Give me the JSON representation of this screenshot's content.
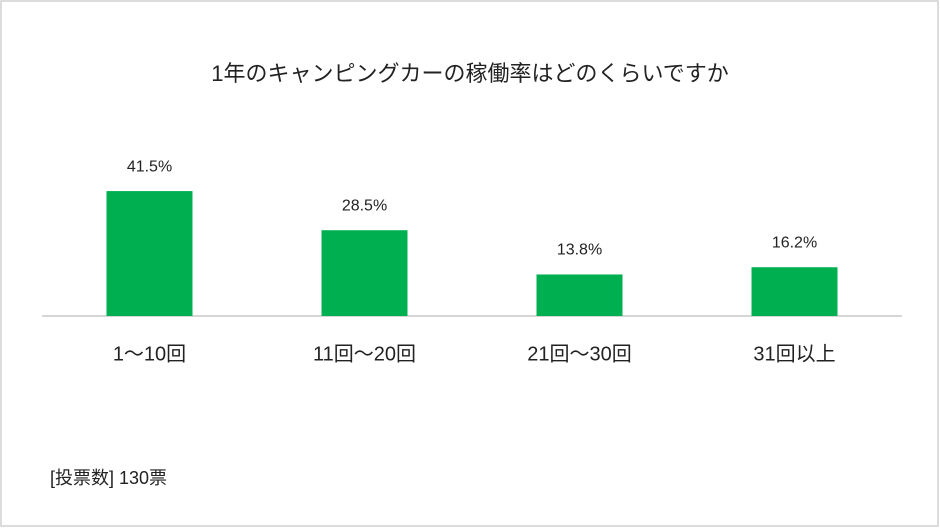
{
  "chart_data": {
    "type": "bar",
    "title": "1年のキャンピングカーの稼働率はどのくらいですか",
    "categories": [
      "1～10回",
      "11回～20回",
      "21回～30回",
      "31回以上"
    ],
    "values": [
      41.5,
      28.5,
      13.8,
      16.2
    ],
    "value_labels": [
      "41.5%",
      "28.5%",
      "13.8%",
      "16.2%"
    ],
    "color": "#00b050",
    "footnote": "[投票数] 130票"
  }
}
